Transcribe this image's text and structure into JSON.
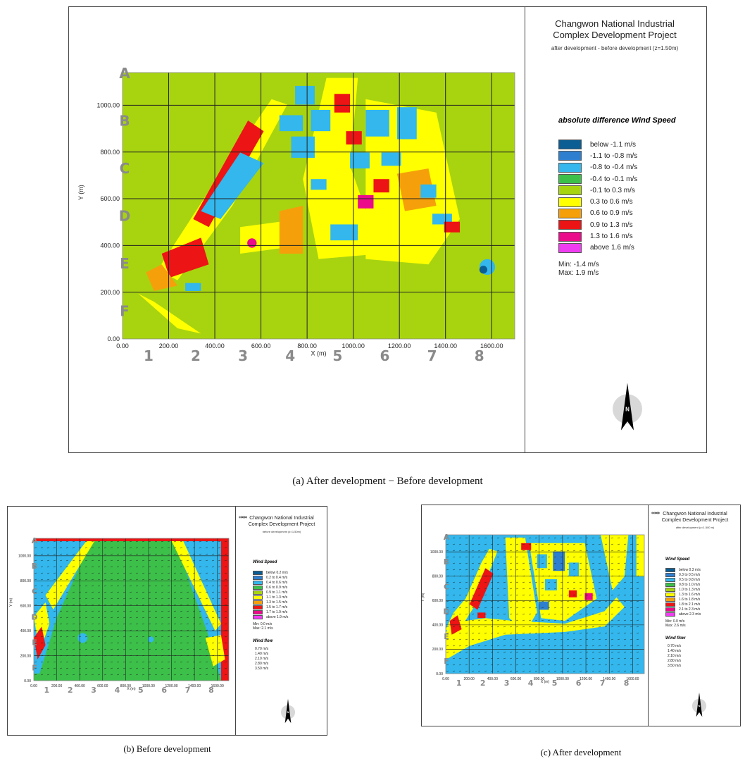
{
  "captions": {
    "a": "(a)  After  development  −  Before  development",
    "b": "(b)  Before  development",
    "c": "(c)  After  development"
  },
  "chart_data": [
    {
      "id": "a",
      "type": "heatmap",
      "title": "Changwon National Industrial Complex Development Project",
      "subtitle": "after development - before development (z=1.50m)",
      "xlabel": "X (m)",
      "ylabel": "Y (m)",
      "xlim": [
        0,
        1700
      ],
      "ylim": [
        0,
        1140
      ],
      "x_ticks": [
        "0.00",
        "200.00",
        "400.00",
        "600.00",
        "800.00",
        "1000.00",
        "1200.00",
        "1400.00",
        "1600.00"
      ],
      "y_ticks": [
        "0.00",
        "200.00",
        "400.00",
        "600.00",
        "800.00",
        "1000.00"
      ],
      "grid": true,
      "grid_columns": [
        "1",
        "2",
        "3",
        "4",
        "5",
        "6",
        "7",
        "8"
      ],
      "grid_rows": [
        "A",
        "B",
        "C",
        "D",
        "E",
        "F"
      ],
      "legend_title": "absolute difference Wind Speed",
      "legend": [
        {
          "label": "below -1.1 m/s",
          "color": "#0b5e93"
        },
        {
          "label": "-1.1 to -0.8 m/s",
          "color": "#2f7fd0"
        },
        {
          "label": "-0.8 to -0.4 m/s",
          "color": "#33b7ec"
        },
        {
          "label": "-0.4 to -0.1 m/s",
          "color": "#3cc04a"
        },
        {
          "label": "-0.1 to 0.3 m/s",
          "color": "#a8d40f"
        },
        {
          "label": "0.3 to 0.6 m/s",
          "color": "#ffff00"
        },
        {
          "label": "0.6 to 0.9 m/s",
          "color": "#f5a00a"
        },
        {
          "label": "0.9 to 1.3 m/s",
          "color": "#ec1414"
        },
        {
          "label": "1.3 to 1.6 m/s",
          "color": "#ea0a8a"
        },
        {
          "label": "above 1.6 m/s",
          "color": "#f03cf0"
        }
      ],
      "min": "Min: -1.4 m/s",
      "max": "Max: 1.9 m/s",
      "background_color": "#a8d40f"
    },
    {
      "id": "b",
      "type": "heatmap",
      "title": "Changwon National Industrial Complex Development Project",
      "subtitle": "before development (z=1.50m)",
      "xlabel": "X (m)",
      "ylabel": "Y (m)",
      "xlim": [
        0,
        1700
      ],
      "ylim": [
        0,
        1140
      ],
      "x_ticks": [
        "0.00",
        "200.00",
        "400.00",
        "600.00",
        "800.00",
        "1000.00",
        "1200.00",
        "1400.00",
        "1600.00"
      ],
      "y_ticks": [
        "0.00",
        "200.00",
        "400.00",
        "600.00",
        "800.00",
        "1000.00"
      ],
      "grid": true,
      "grid_columns": [
        "1",
        "2",
        "3",
        "4",
        "5",
        "6",
        "7",
        "8"
      ],
      "grid_rows": [
        "A",
        "B",
        "C",
        "D",
        "E",
        "F"
      ],
      "legend_title": "Wind Speed",
      "legend": [
        {
          "label": "below 0.2 m/s",
          "color": "#0b5e93"
        },
        {
          "label": "0.2 to 0.4 m/s",
          "color": "#2f7fd0"
        },
        {
          "label": "0.4 to 0.6 m/s",
          "color": "#33b7ec"
        },
        {
          "label": "0.6 to 0.9 m/s",
          "color": "#3cc04a"
        },
        {
          "label": "0.9 to 1.1 m/s",
          "color": "#a8d40f"
        },
        {
          "label": "1.1 to 1.3 m/s",
          "color": "#ffff00"
        },
        {
          "label": "1.3 to 1.5 m/s",
          "color": "#f5a00a"
        },
        {
          "label": "1.5 to 1.7 m/s",
          "color": "#ec1414"
        },
        {
          "label": "1.7 to 1.9 m/s",
          "color": "#ea0a8a"
        },
        {
          "label": "above 1.9 m/s",
          "color": "#f03cf0"
        }
      ],
      "min": "Min: 0.0 m/s",
      "max": "Max: 2.1 m/s",
      "flow_title": "Wind flow",
      "flow_legend": [
        "0.70 m/s",
        "1.40 m/s",
        "2.10 m/s",
        "2.80 m/s",
        "3.50 m/s"
      ],
      "background_color": "#3cc04a"
    },
    {
      "id": "c",
      "type": "heatmap",
      "title": "Changwon National Industrial Complex Development Project",
      "subtitle": "after development (z=1.500 m)",
      "xlabel": "X (m)",
      "ylabel": "Y (m)",
      "xlim": [
        0,
        1700
      ],
      "ylim": [
        0,
        1140
      ],
      "x_ticks": [
        "0.00",
        "200.00",
        "400.00",
        "600.00",
        "800.00",
        "1000.00",
        "1200.00",
        "1400.00",
        "1600.00"
      ],
      "y_ticks": [
        "0.00",
        "200.00",
        "400.00",
        "600.00",
        "800.00",
        "1000.00"
      ],
      "grid": true,
      "grid_columns": [
        "1",
        "2",
        "3",
        "4",
        "5",
        "6",
        "7",
        "8"
      ],
      "grid_rows": [
        "A",
        "B",
        "C",
        "D",
        "E",
        "F"
      ],
      "legend_title": "Wind Speed",
      "legend": [
        {
          "label": "below 0.3 m/s",
          "color": "#0b5e93"
        },
        {
          "label": "0.3 to 0.5 m/s",
          "color": "#2f7fd0"
        },
        {
          "label": "0.5 to 0.8 m/s",
          "color": "#33b7ec"
        },
        {
          "label": "0.8 to 1.0 m/s",
          "color": "#3cc04a"
        },
        {
          "label": "1.0 to 1.3 m/s",
          "color": "#a8d40f"
        },
        {
          "label": "1.3 to 1.6 m/s",
          "color": "#ffff00"
        },
        {
          "label": "1.6 to 1.8 m/s",
          "color": "#f5a00a"
        },
        {
          "label": "1.8 to 2.1 m/s",
          "color": "#ec1414"
        },
        {
          "label": "2.1 to 2.3 m/s",
          "color": "#ea0a8a"
        },
        {
          "label": "above 2.3 m/s",
          "color": "#f03cf0"
        }
      ],
      "min": "Min: 0.0 m/s",
      "max": "Max: 2.6 m/s",
      "flow_title": "Wind flow",
      "flow_legend": [
        "0.70 m/s",
        "1.40 m/s",
        "2.10 m/s",
        "2.80 m/s",
        "3.50 m/s"
      ],
      "background_color": "#33b7ec"
    }
  ]
}
